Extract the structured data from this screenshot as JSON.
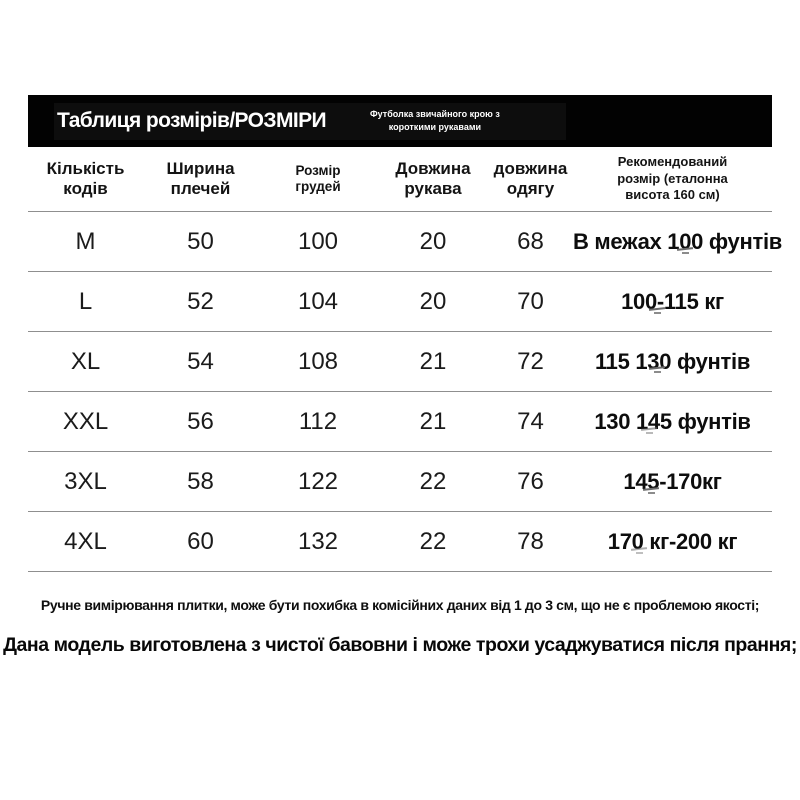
{
  "header_bar": {
    "title": "Таблиця розмірів/РОЗМІРИ",
    "subtitle": "Футболка звичайного крою з\nкороткими рукавами"
  },
  "table": {
    "columns": [
      {
        "label": "Кількість\nкодів"
      },
      {
        "label": "Ширина\nплечей"
      },
      {
        "label": "Розмір\nгрудей"
      },
      {
        "label": "Довжина\nрукава"
      },
      {
        "label": "довжина\nодягу"
      },
      {
        "label": "Рекомендований\nрозмір (еталонна\nвисота 160 см)"
      }
    ],
    "rows": [
      {
        "size": "M",
        "shoulder": "50",
        "chest": "100",
        "sleeve": "20",
        "length": "68",
        "recommended": "В межах 100 фунтів"
      },
      {
        "size": "L",
        "shoulder": "52",
        "chest": "104",
        "sleeve": "20",
        "length": "70",
        "recommended": "100-115 кг"
      },
      {
        "size": "XL",
        "shoulder": "54",
        "chest": "108",
        "sleeve": "21",
        "length": "72",
        "recommended": "115 130 фунтів"
      },
      {
        "size": "XXL",
        "shoulder": "56",
        "chest": "112",
        "sleeve": "21",
        "length": "74",
        "recommended": "130 145 фунтів"
      },
      {
        "size": "3XL",
        "shoulder": "58",
        "chest": "122",
        "sleeve": "22",
        "length": "76",
        "recommended": "145-170кг"
      },
      {
        "size": "4XL",
        "shoulder": "60",
        "chest": "132",
        "sleeve": "22",
        "length": "78",
        "recommended": "170 кг-200 кг"
      }
    ]
  },
  "notes": {
    "measurement": "Ручне вимірювання плитки, може бути похибка в комісійних даних від 1 до 3 см, що не є проблемою якості;",
    "material": "Дана модель виготовлена з чистої бавовни і може трохи усаджуватися після прання;"
  },
  "colors": {
    "header_bg": "#020202",
    "header_text": "#ffffff",
    "divider": "#8f8f8f",
    "body_text": "#1b1b1b"
  }
}
